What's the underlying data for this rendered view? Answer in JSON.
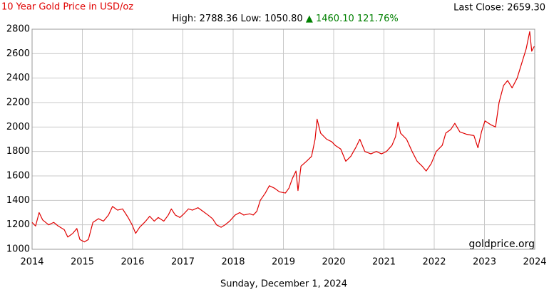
{
  "chart_data": {
    "type": "line",
    "title": "10 Year Gold Price in USD/oz",
    "last_close": "Last Close: 2659.30",
    "stats": {
      "high_low": "High: 2788.36 Low: 1050.80",
      "change": "▲ 1460.10 121.76%"
    },
    "watermark": "goldprice.org",
    "date": "Sunday, December 1, 2024",
    "x": [
      2014.0,
      2014.07,
      2014.14,
      2014.21,
      2014.33,
      2014.43,
      2014.52,
      2014.64,
      2014.71,
      2014.81,
      2014.89,
      2014.95,
      2015.04,
      2015.12,
      2015.21,
      2015.32,
      2015.42,
      2015.52,
      2015.6,
      2015.7,
      2015.8,
      2015.91,
      2015.99,
      2016.06,
      2016.14,
      2016.26,
      2016.34,
      2016.43,
      2016.51,
      2016.62,
      2016.71,
      2016.77,
      2016.85,
      2016.94,
      2017.02,
      2017.11,
      2017.19,
      2017.3,
      2017.4,
      2017.5,
      2017.59,
      2017.67,
      2017.76,
      2017.84,
      2017.93,
      2018.04,
      2018.13,
      2018.21,
      2018.33,
      2018.4,
      2018.47,
      2018.54,
      2018.64,
      2018.72,
      2018.82,
      2018.92,
      2019.04,
      2019.11,
      2019.18,
      2019.25,
      2019.29,
      2019.35,
      2019.46,
      2019.56,
      2019.63,
      2019.67,
      2019.74,
      2019.86,
      2019.96,
      2020.03,
      2020.14,
      2020.24,
      2020.34,
      2020.45,
      2020.52,
      2020.62,
      2020.74,
      2020.85,
      2020.95,
      2021.05,
      2021.16,
      2021.23,
      2021.28,
      2021.33,
      2021.45,
      2021.56,
      2021.66,
      2021.76,
      2021.84,
      2021.94,
      2022.04,
      2022.16,
      2022.23,
      2022.33,
      2022.41,
      2022.51,
      2022.65,
      2022.79,
      2022.87,
      2022.94,
      2023.01,
      2023.12,
      2023.22,
      2023.29,
      2023.38,
      2023.46,
      2023.55,
      2023.65,
      2023.74,
      2023.83,
      2023.9,
      2023.94,
      2023.99
    ],
    "series": [
      {
        "name": "Gold",
        "color": "#e00000",
        "values": [
          1220,
          1190,
          1300,
          1240,
          1200,
          1220,
          1190,
          1160,
          1100,
          1130,
          1170,
          1080,
          1060,
          1080,
          1220,
          1250,
          1230,
          1280,
          1350,
          1320,
          1330,
          1260,
          1200,
          1130,
          1180,
          1230,
          1270,
          1230,
          1260,
          1230,
          1280,
          1330,
          1280,
          1260,
          1290,
          1330,
          1320,
          1340,
          1310,
          1280,
          1250,
          1200,
          1180,
          1200,
          1230,
          1280,
          1300,
          1280,
          1290,
          1280,
          1310,
          1400,
          1460,
          1520,
          1500,
          1470,
          1460,
          1500,
          1580,
          1640,
          1480,
          1680,
          1720,
          1760,
          1900,
          2064,
          1950,
          1900,
          1880,
          1850,
          1820,
          1720,
          1760,
          1840,
          1900,
          1800,
          1780,
          1800,
          1780,
          1800,
          1850,
          1920,
          2040,
          1950,
          1900,
          1800,
          1720,
          1680,
          1640,
          1700,
          1800,
          1850,
          1950,
          1980,
          2030,
          1960,
          1940,
          1930,
          1830,
          1960,
          2050,
          2020,
          2000,
          2200,
          2340,
          2380,
          2320,
          2400,
          2520,
          2640,
          2780,
          2620,
          2659.3
        ]
      }
    ],
    "xlim": [
      2014,
      2024
    ],
    "xticks": [
      2014,
      2015,
      2016,
      2017,
      2018,
      2019,
      2020,
      2021,
      2022,
      2023,
      2024
    ],
    "ylim": [
      1000,
      2800
    ],
    "yticks": [
      1000,
      1200,
      1400,
      1600,
      1800,
      2000,
      2200,
      2400,
      2600,
      2800
    ],
    "grid": true
  }
}
